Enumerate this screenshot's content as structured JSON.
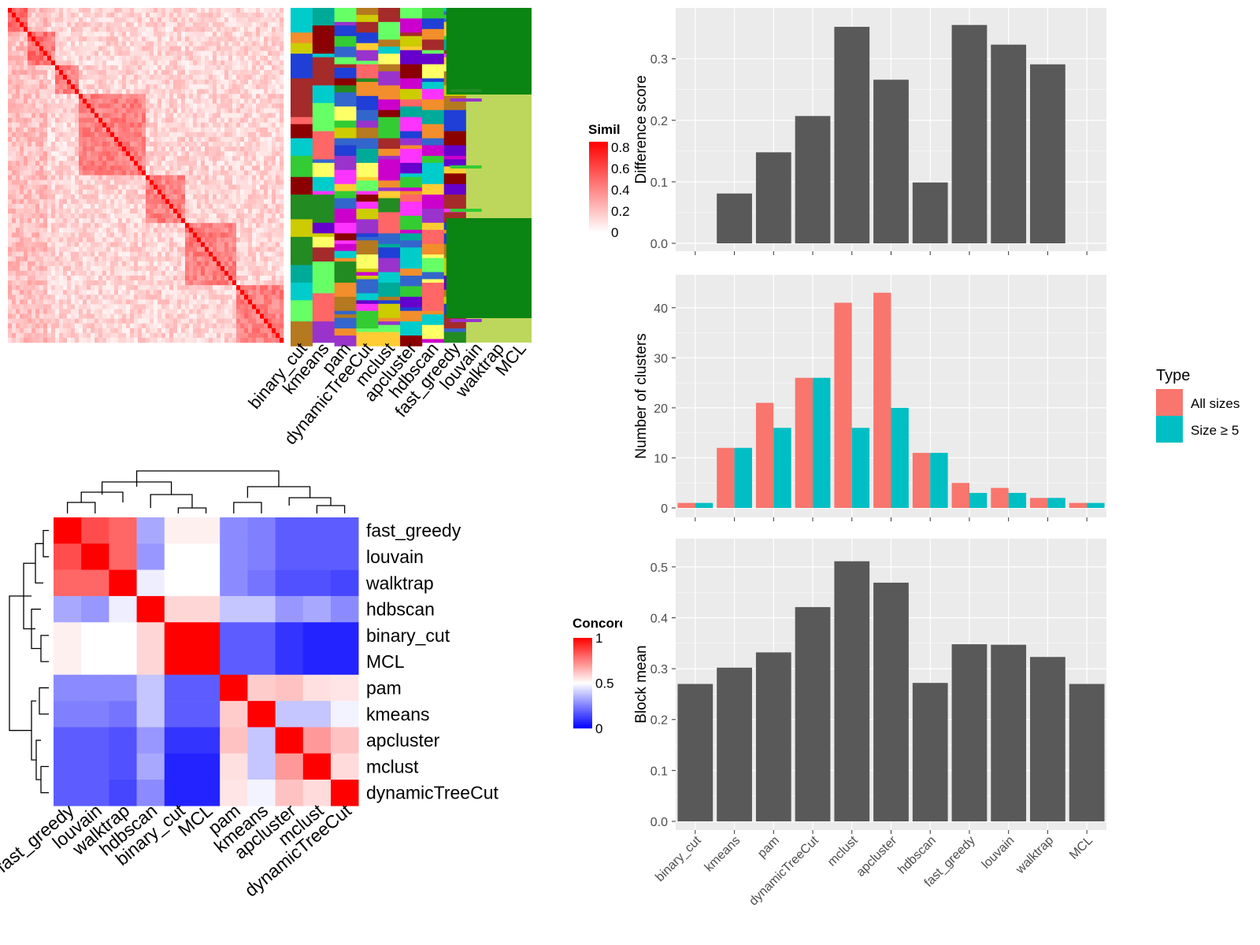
{
  "colors": {
    "panel_bg": "#ebebeb",
    "grid": "#ffffff",
    "bar_dark": "#595959",
    "all_sizes": "#f8766d",
    "size_ge5": "#00bfc4",
    "sim_high": "#ff0000",
    "sim_low": "#ffffff",
    "conc_high": "#ff0000",
    "conc_mid": "#ffffff",
    "conc_low": "#0000ff",
    "membership_bg": "#bcd75c"
  },
  "similarity_heatmap": {
    "legend_title": "Similarity",
    "legend_ticks": [
      "0.8",
      "0.6",
      "0.4",
      "0.2",
      "0"
    ],
    "method_columns": [
      "binary_cut",
      "kmeans",
      "pam",
      "dynamicTreeCut",
      "mclust",
      "apcluster",
      "hdbscan",
      "fast_greedy",
      "louvain",
      "walktrap",
      "MCL"
    ]
  },
  "concordance_heatmap": {
    "legend_title": "Concordance",
    "legend_ticks": [
      "1",
      "0.5",
      "0"
    ],
    "methods": [
      "fast_greedy",
      "louvain",
      "walktrap",
      "hdbscan",
      "binary_cut",
      "MCL",
      "pam",
      "kmeans",
      "apcluster",
      "mclust",
      "dynamicTreeCut"
    ],
    "matrix": [
      [
        1.0,
        0.85,
        0.8,
        0.35,
        0.53,
        0.53,
        0.3,
        0.28,
        0.22,
        0.22,
        0.22
      ],
      [
        0.85,
        1.0,
        0.8,
        0.32,
        0.5,
        0.5,
        0.3,
        0.28,
        0.22,
        0.22,
        0.22
      ],
      [
        0.8,
        0.8,
        1.0,
        0.47,
        0.5,
        0.5,
        0.3,
        0.26,
        0.2,
        0.2,
        0.18
      ],
      [
        0.35,
        0.32,
        0.47,
        1.0,
        0.58,
        0.58,
        0.4,
        0.4,
        0.32,
        0.35,
        0.3
      ],
      [
        0.53,
        0.5,
        0.5,
        0.58,
        1.0,
        1.0,
        0.22,
        0.22,
        0.15,
        0.12,
        0.12
      ],
      [
        0.53,
        0.5,
        0.5,
        0.58,
        1.0,
        1.0,
        0.22,
        0.22,
        0.15,
        0.12,
        0.12
      ],
      [
        0.3,
        0.3,
        0.3,
        0.4,
        0.22,
        0.22,
        1.0,
        0.6,
        0.62,
        0.56,
        0.55
      ],
      [
        0.28,
        0.28,
        0.26,
        0.4,
        0.22,
        0.22,
        0.6,
        1.0,
        0.4,
        0.4,
        0.48
      ],
      [
        0.22,
        0.22,
        0.2,
        0.32,
        0.15,
        0.15,
        0.62,
        0.4,
        1.0,
        0.7,
        0.62
      ],
      [
        0.22,
        0.22,
        0.2,
        0.35,
        0.12,
        0.12,
        0.56,
        0.4,
        0.7,
        1.0,
        0.57
      ],
      [
        0.22,
        0.22,
        0.18,
        0.3,
        0.12,
        0.12,
        0.55,
        0.48,
        0.62,
        0.57,
        1.0
      ]
    ]
  },
  "chart_data": [
    {
      "type": "bar",
      "ylabel": "Difference score",
      "categories": [
        "binary_cut",
        "kmeans",
        "pam",
        "dynamicTreeCut",
        "mclust",
        "apcluster",
        "hdbscan",
        "fast_greedy",
        "louvain",
        "walktrap",
        "MCL"
      ],
      "values": [
        0,
        0.081,
        0.148,
        0.207,
        0.352,
        0.266,
        0.099,
        0.355,
        0.323,
        0.291,
        0
      ],
      "ylim": [
        0,
        0.37
      ],
      "yticks": [
        "0.0",
        "0.1",
        "0.2",
        "0.3"
      ],
      "grid": true
    },
    {
      "type": "bar",
      "ylabel": "Number of clusters",
      "categories": [
        "binary_cut",
        "kmeans",
        "pam",
        "dynamicTreeCut",
        "mclust",
        "apcluster",
        "hdbscan",
        "fast_greedy",
        "louvain",
        "walktrap",
        "MCL"
      ],
      "series": [
        {
          "name": "All sizes",
          "values": [
            1,
            12,
            21,
            26,
            41,
            43,
            11,
            5,
            4,
            2,
            1
          ]
        },
        {
          "name": "Size ≥ 5",
          "values": [
            1,
            12,
            16,
            26,
            16,
            20,
            11,
            3,
            3,
            2,
            1
          ]
        }
      ],
      "ylim": [
        0,
        45
      ],
      "yticks": [
        "0",
        "10",
        "20",
        "30",
        "40"
      ],
      "legend": {
        "title": "Type",
        "position": "right"
      },
      "grid": true
    },
    {
      "type": "bar",
      "ylabel": "Block mean",
      "categories": [
        "binary_cut",
        "kmeans",
        "pam",
        "dynamicTreeCut",
        "mclust",
        "apcluster",
        "hdbscan",
        "fast_greedy",
        "louvain",
        "walktrap",
        "MCL"
      ],
      "values": [
        0.27,
        0.302,
        0.332,
        0.421,
        0.511,
        0.469,
        0.272,
        0.348,
        0.347,
        0.323,
        0.27
      ],
      "ylim": [
        0,
        0.54
      ],
      "yticks": [
        "0.0",
        "0.1",
        "0.2",
        "0.3",
        "0.4",
        "0.5"
      ],
      "grid": true
    }
  ]
}
